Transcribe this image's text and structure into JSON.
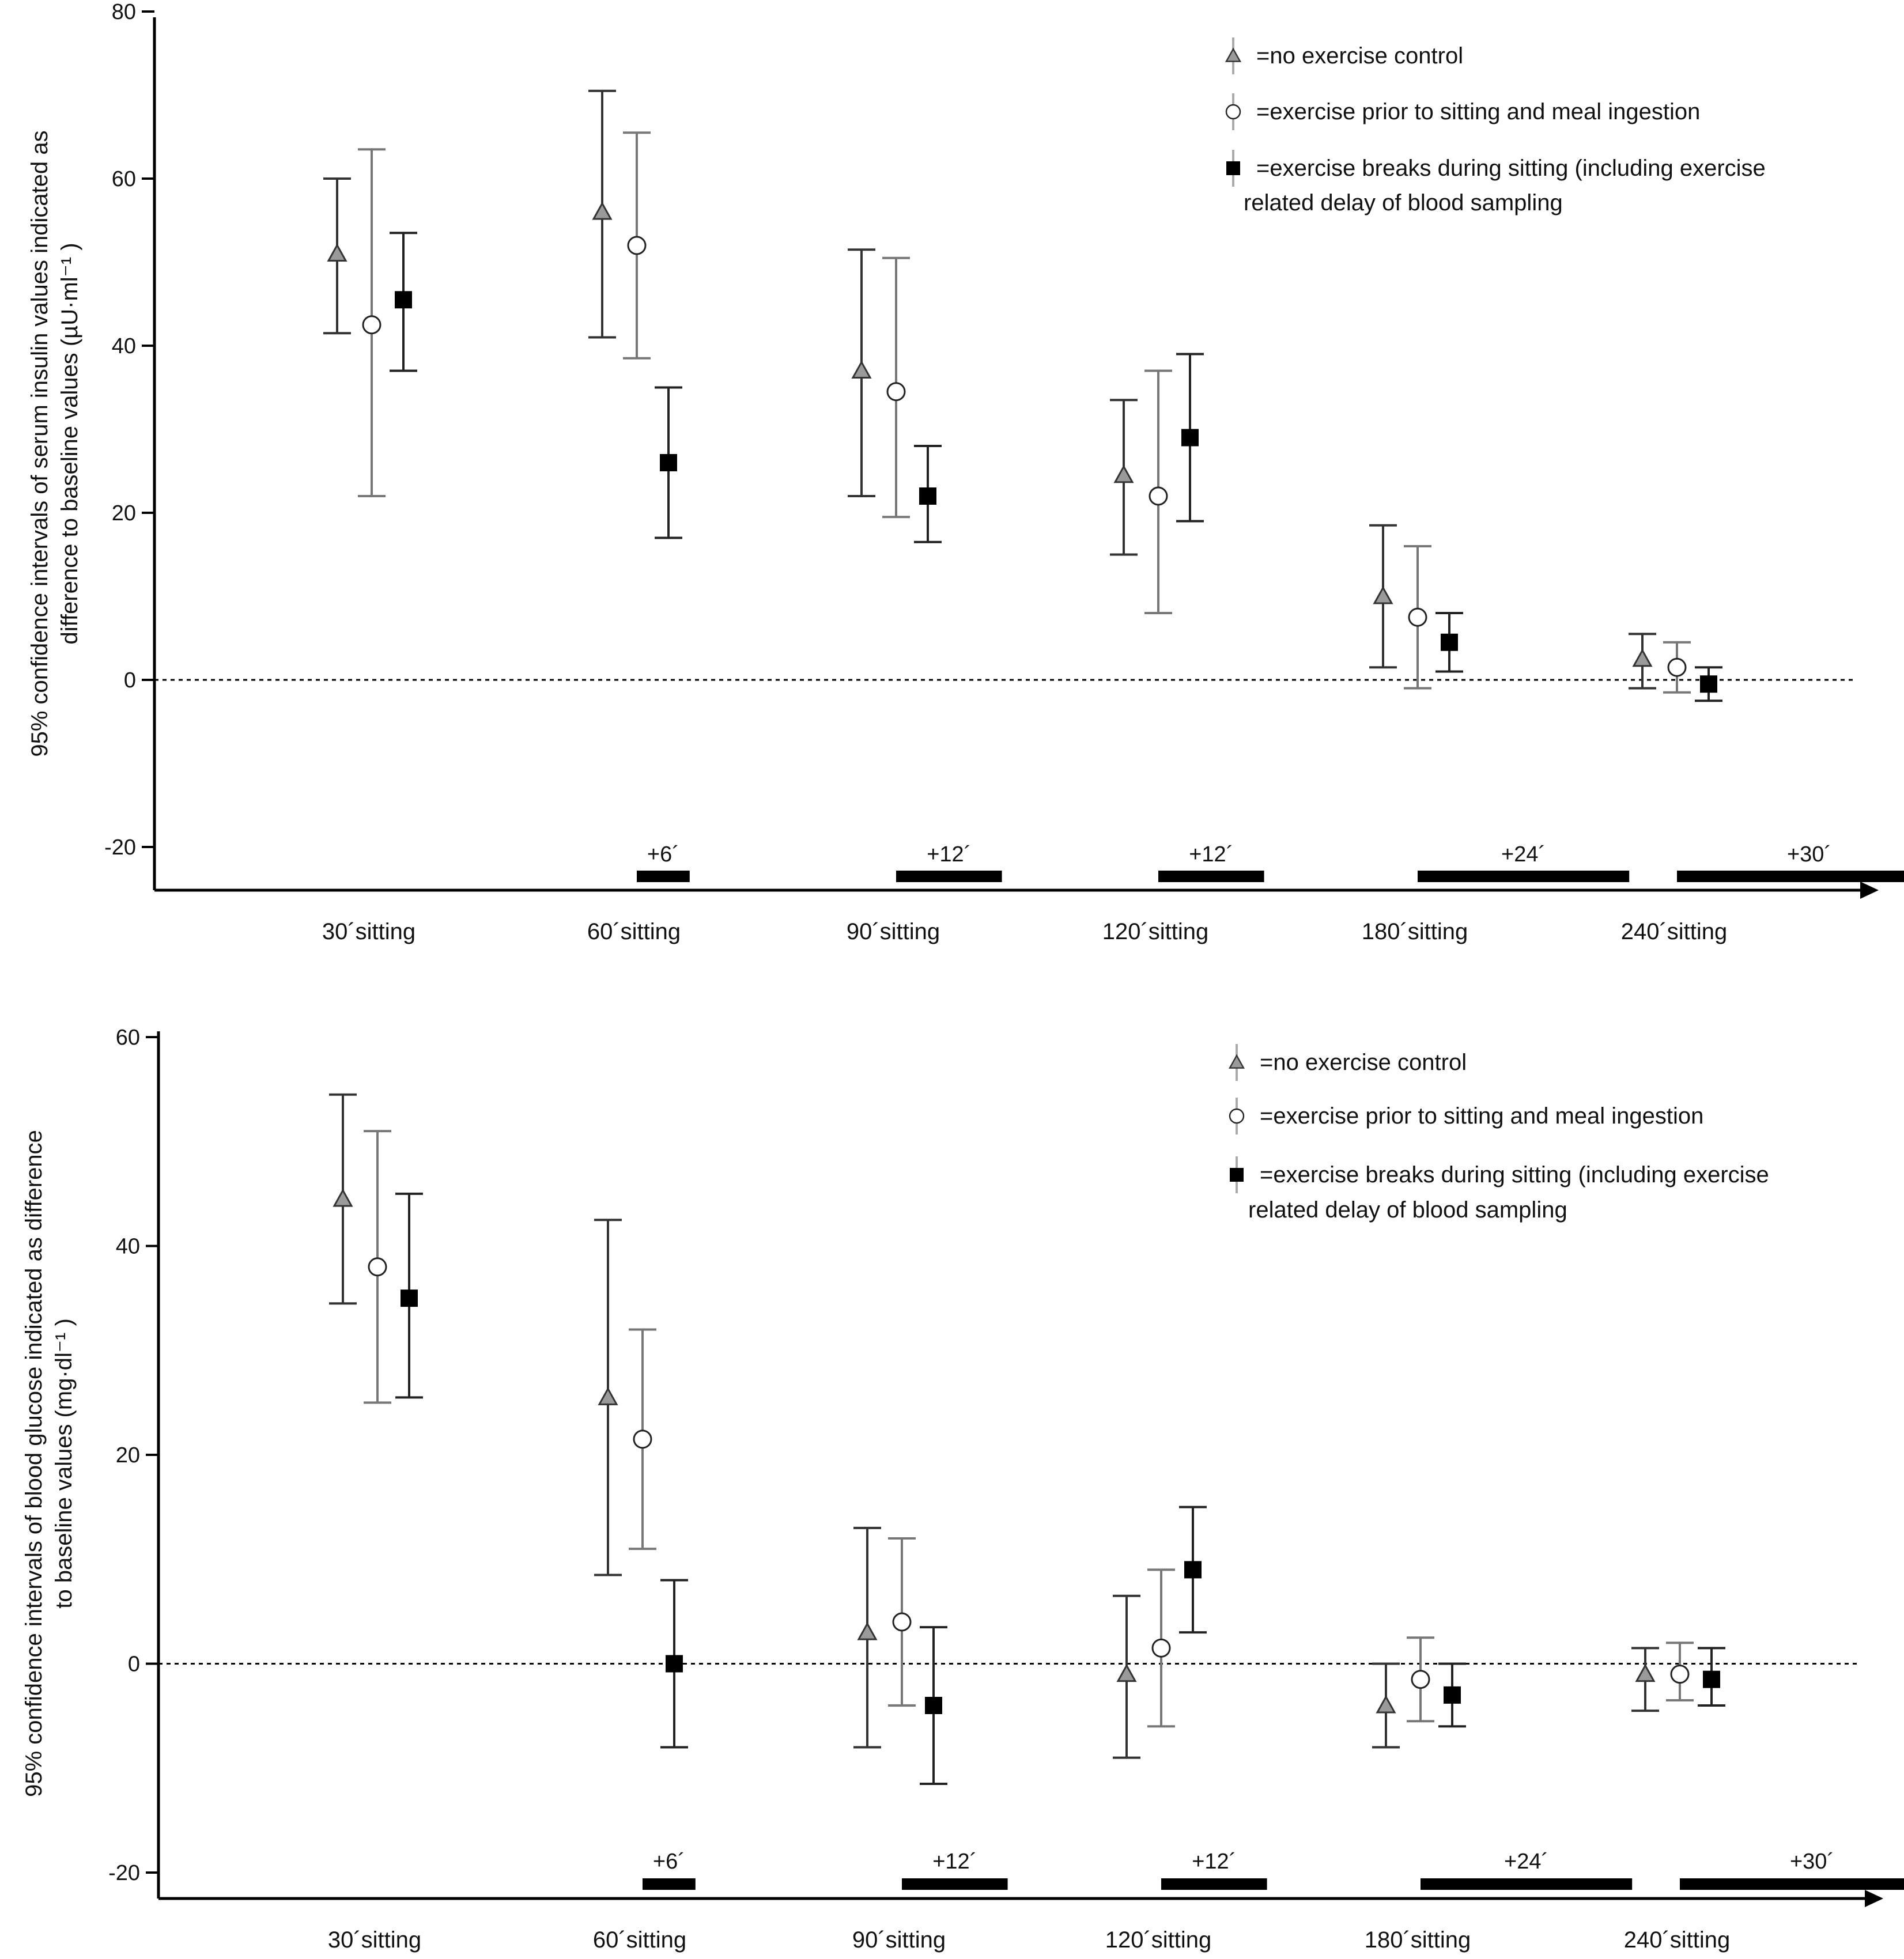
{
  "legend": {
    "control": "=no exercise control",
    "prior": "=exercise prior to sitting and meal ingestion",
    "breaks_line1": "=exercise breaks during sitting (including exercise",
    "breaks_line2": "related delay of blood sampling"
  },
  "colors": {
    "control_marker": "#9a9a9a",
    "control_whisker": "#333333",
    "prior_marker": "#ffffff",
    "prior_whisker": "#777777",
    "breaks_marker": "#000000",
    "breaks_whisker": "#222222",
    "axis": "#000000"
  },
  "chart_data": [
    {
      "id": "insulin",
      "type": "scatter",
      "ylabel_line1": "95% confidence intervals of serum insulin values indicated as",
      "ylabel_line2": "difference to baseline values (µU·ml⁻¹ )",
      "ylim": [
        -25,
        85
      ],
      "yticks": [
        -20,
        0,
        20,
        40,
        60,
        80
      ],
      "ytick_labels": [
        "-20",
        "0",
        "20",
        "40",
        "60",
        "80"
      ],
      "categories": [
        "30´sitting",
        "60´sitting",
        "90´sitting",
        "120´sitting",
        "180´sitting",
        "240´sitting"
      ],
      "delays": [
        {
          "category": 1,
          "label": "+6´",
          "minutes": 6
        },
        {
          "category": 2,
          "label": "+12´",
          "minutes": 12
        },
        {
          "category": 3,
          "label": "+12´",
          "minutes": 12
        },
        {
          "category": 4,
          "label": "+24´",
          "minutes": 24
        },
        {
          "category": 5,
          "label": "+30´",
          "minutes": 30
        }
      ],
      "reference_line": 0,
      "series": [
        {
          "name": "no exercise control",
          "marker": "triangle",
          "values": [
            51,
            56,
            37,
            24.5,
            10,
            2.5
          ],
          "ci_low": [
            41.5,
            41,
            22,
            15,
            1.5,
            -1
          ],
          "ci_high": [
            60,
            70.5,
            51.5,
            33.5,
            18.5,
            5.5
          ]
        },
        {
          "name": "exercise prior to sitting and meal ingestion",
          "marker": "circle",
          "values": [
            42.5,
            52,
            34.5,
            22,
            7.5,
            1.5
          ],
          "ci_low": [
            22,
            38.5,
            19.5,
            8,
            -1,
            -1.5
          ],
          "ci_high": [
            63.5,
            65.5,
            50.5,
            37,
            16,
            4.5
          ]
        },
        {
          "name": "exercise breaks during sitting",
          "marker": "square",
          "values": [
            45.5,
            26,
            22,
            29,
            4.5,
            -0.5
          ],
          "ci_low": [
            37,
            17,
            16.5,
            19,
            1,
            -2.5
          ],
          "ci_high": [
            53.5,
            35,
            28,
            39,
            8,
            1.5
          ]
        }
      ]
    },
    {
      "id": "glucose",
      "type": "scatter",
      "ylabel_line1": "95% confidence intervals of blood glucose indicated as difference",
      "ylabel_line2": "to baseline values (mg·dl⁻¹ )",
      "ylim": [
        -24,
        63
      ],
      "yticks": [
        -20,
        0,
        20,
        40,
        60
      ],
      "ytick_labels": [
        "-20",
        "0",
        "20",
        "40",
        "60"
      ],
      "categories": [
        "30´sitting",
        "60´sitting",
        "90´sitting",
        "120´sitting",
        "180´sitting",
        "240´sitting"
      ],
      "delays": [
        {
          "category": 1,
          "label": "+6´",
          "minutes": 6
        },
        {
          "category": 2,
          "label": "+12´",
          "minutes": 12
        },
        {
          "category": 3,
          "label": "+12´",
          "minutes": 12
        },
        {
          "category": 4,
          "label": "+24´",
          "minutes": 24
        },
        {
          "category": 5,
          "label": "+30´",
          "minutes": 30
        }
      ],
      "reference_line": 0,
      "series": [
        {
          "name": "no exercise control",
          "marker": "triangle",
          "values": [
            44.5,
            25.5,
            3,
            -1,
            -4,
            -1
          ],
          "ci_low": [
            34.5,
            8.5,
            -8,
            -9,
            -8,
            -4.5
          ],
          "ci_high": [
            54.5,
            42.5,
            13,
            6.5,
            0,
            1.5
          ]
        },
        {
          "name": "exercise prior to sitting and meal ingestion",
          "marker": "circle",
          "values": [
            38,
            21.5,
            4,
            1.5,
            -1.5,
            -1
          ],
          "ci_low": [
            25,
            11,
            -4,
            -6,
            -5.5,
            -3.5
          ],
          "ci_high": [
            51,
            32,
            12,
            9,
            2.5,
            2
          ]
        },
        {
          "name": "exercise breaks during sitting",
          "marker": "square",
          "values": [
            35,
            0,
            -4,
            9,
            -3,
            -1.5
          ],
          "ci_low": [
            25.5,
            -8,
            -11.5,
            3,
            -6,
            -4
          ],
          "ci_high": [
            45,
            8,
            3.5,
            15,
            0,
            1.5
          ]
        }
      ]
    }
  ]
}
